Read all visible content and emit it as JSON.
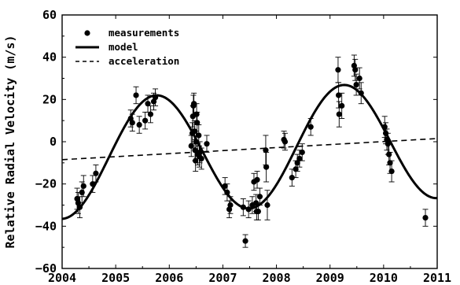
{
  "chart_data": {
    "type": "scatter",
    "title": "",
    "xlabel": "",
    "ylabel": "Relative Radial Velocity (m/s)",
    "xlim": [
      2004,
      2011
    ],
    "ylim": [
      -60,
      60
    ],
    "x_ticks": [
      "2004",
      "2005",
      "2006",
      "2007",
      "2008",
      "2009",
      "2010",
      "2011"
    ],
    "y_ticks": [
      "60",
      "40",
      "20",
      "0",
      "−20",
      "−40",
      "−60"
    ],
    "grid": false,
    "legend_position": "top-left",
    "legend": [
      "measurements",
      "model",
      "acceleration"
    ],
    "series": [
      {
        "name": "measurements",
        "kind": "points-with-error-bars",
        "points": [
          [
            2004.28,
            -27,
            5
          ],
          [
            2004.3,
            -29,
            5
          ],
          [
            2004.33,
            -31,
            5
          ],
          [
            2004.37,
            -24,
            5
          ],
          [
            2004.4,
            -21,
            5
          ],
          [
            2004.57,
            -20,
            4
          ],
          [
            2004.63,
            -15,
            4
          ],
          [
            2005.28,
            11,
            4
          ],
          [
            2005.31,
            9,
            4
          ],
          [
            2005.38,
            22,
            4
          ],
          [
            2005.44,
            8,
            4
          ],
          [
            2005.55,
            10,
            4
          ],
          [
            2005.6,
            18,
            4
          ],
          [
            2005.65,
            13,
            4
          ],
          [
            2005.71,
            19,
            4
          ],
          [
            2005.74,
            21,
            4
          ],
          [
            2006.41,
            -2,
            5
          ],
          [
            2006.43,
            4,
            5
          ],
          [
            2006.44,
            12,
            5
          ],
          [
            2006.45,
            17,
            5
          ],
          [
            2006.46,
            18,
            5
          ],
          [
            2006.47,
            5,
            5
          ],
          [
            2006.48,
            -4,
            5
          ],
          [
            2006.49,
            -9,
            5
          ],
          [
            2006.5,
            0,
            5
          ],
          [
            2006.51,
            13,
            5
          ],
          [
            2006.52,
            9,
            5
          ],
          [
            2006.53,
            -6,
            5
          ],
          [
            2006.55,
            3,
            5
          ],
          [
            2006.56,
            -7,
            5
          ],
          [
            2006.57,
            -5,
            5
          ],
          [
            2006.6,
            -8,
            5
          ],
          [
            2006.7,
            -1,
            4
          ],
          [
            2007.04,
            -21,
            4
          ],
          [
            2007.08,
            -24,
            4
          ],
          [
            2007.12,
            -32,
            4
          ],
          [
            2007.14,
            -30,
            4
          ],
          [
            2007.38,
            -31,
            4
          ],
          [
            2007.42,
            -47,
            3
          ],
          [
            2007.48,
            -32,
            4
          ],
          [
            2007.55,
            -30,
            4
          ],
          [
            2007.58,
            -19,
            4
          ],
          [
            2007.62,
            -29,
            4
          ],
          [
            2007.63,
            -33,
            4
          ],
          [
            2007.64,
            -18,
            4
          ],
          [
            2007.66,
            -33,
            4
          ],
          [
            2007.69,
            -26,
            4
          ],
          [
            2007.8,
            -4,
            7
          ],
          [
            2007.81,
            -12,
            7
          ],
          [
            2007.83,
            -30,
            7
          ],
          [
            2008.14,
            1,
            4
          ],
          [
            2008.16,
            0,
            4
          ],
          [
            2008.29,
            -17,
            4
          ],
          [
            2008.36,
            -13,
            4
          ],
          [
            2008.39,
            -10,
            4
          ],
          [
            2008.43,
            -8,
            4
          ],
          [
            2008.48,
            -5,
            4
          ],
          [
            2008.64,
            7,
            4
          ],
          [
            2009.15,
            34,
            6
          ],
          [
            2009.16,
            22,
            6
          ],
          [
            2009.17,
            13,
            6
          ],
          [
            2009.22,
            17,
            6
          ],
          [
            2009.45,
            36,
            5
          ],
          [
            2009.47,
            34,
            5
          ],
          [
            2009.49,
            27,
            5
          ],
          [
            2009.55,
            30,
            5
          ],
          [
            2009.58,
            23,
            5
          ],
          [
            2010.02,
            7,
            5
          ],
          [
            2010.04,
            4,
            5
          ],
          [
            2010.06,
            1,
            5
          ],
          [
            2010.08,
            -1,
            5
          ],
          [
            2010.1,
            -6,
            5
          ],
          [
            2010.12,
            -10,
            5
          ],
          [
            2010.15,
            -14,
            5
          ],
          [
            2010.78,
            -36,
            4
          ]
        ]
      },
      {
        "name": "model",
        "kind": "line",
        "amplitude": 28,
        "period_years": 3.5,
        "t_peak": 2005.75,
        "offset_at_2004": -8.5,
        "trend_per_year": 1.4
      },
      {
        "name": "acceleration",
        "kind": "dashed-line",
        "points": [
          [
            2004,
            -8.5
          ],
          [
            2011,
            1.5
          ]
        ]
      }
    ]
  }
}
